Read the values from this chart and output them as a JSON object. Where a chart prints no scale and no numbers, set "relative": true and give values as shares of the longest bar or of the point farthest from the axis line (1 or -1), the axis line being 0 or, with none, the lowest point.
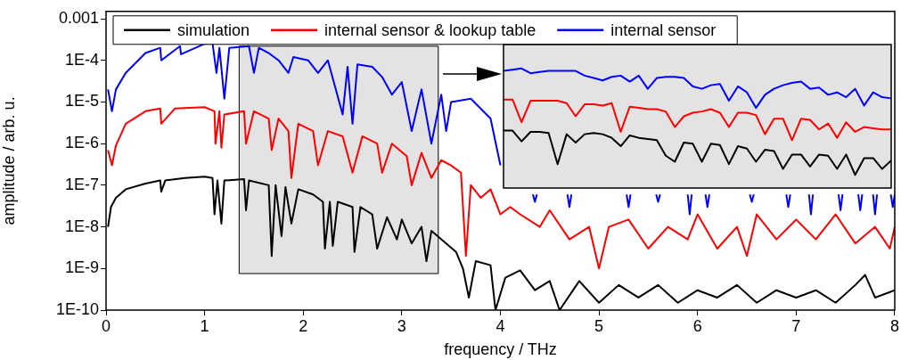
{
  "chart_data": [
    {
      "type": "line",
      "xlabel": "frequency / THz",
      "ylabel": "amplitude / arb. u.",
      "log": true,
      "legend": "top",
      "marker": "none",
      "line_style": "solid",
      "xlim": [
        0,
        8
      ],
      "xticks": [
        0,
        1,
        2,
        3,
        4,
        5,
        6,
        7,
        8
      ],
      "ylim": [
        1e-10,
        0.0015
      ],
      "yticks": [
        0.001,
        {
          "value": 0.0001,
          "label": "1E-4"
        },
        {
          "value": 1e-05,
          "label": "1E-5"
        },
        {
          "value": 1e-06,
          "label": "1E-6"
        },
        {
          "value": 1e-07,
          "label": "1E-7"
        },
        {
          "value": 1e-08,
          "label": "1E-8"
        },
        {
          "value": 1e-09,
          "label": "1E-9"
        },
        {
          "value": 1e-10,
          "label": "1E-10"
        }
      ],
      "bands": [
        {
          "axis": "x",
          "from": 1.35,
          "to": 3.37,
          "color": "#e3e3e3"
        }
      ],
      "series": [
        {
          "name": "simulation",
          "color": "#000000",
          "x": [
            0.02,
            0.05,
            0.1,
            0.2,
            0.4,
            0.55,
            0.56,
            0.6,
            0.8,
            1.0,
            1.08,
            1.1,
            1.13,
            1.17,
            1.2,
            1.4,
            1.42,
            1.45,
            1.65,
            1.68,
            1.72,
            1.78,
            1.82,
            1.88,
            1.95,
            2.1,
            2.2,
            2.22,
            2.27,
            2.3,
            2.35,
            2.5,
            2.52,
            2.58,
            2.7,
            2.75,
            2.85,
            2.95,
            3.0,
            3.1,
            3.2,
            3.25,
            3.3,
            3.45,
            3.55,
            3.62,
            3.68,
            3.75,
            3.9,
            3.95,
            4.05,
            4.2,
            4.35,
            4.5,
            4.6,
            4.8,
            5.0,
            5.2,
            5.4,
            5.6,
            5.8,
            6.0,
            6.2,
            6.4,
            6.6,
            6.8,
            7.0,
            7.2,
            7.4,
            7.6,
            7.7,
            7.8,
            8.0
          ],
          "values": [
            1e-08,
            3e-08,
            5e-08,
            8e-08,
            1.1e-07,
            1.3e-07,
            7e-08,
            1.3e-07,
            1.5e-07,
            1.6e-07,
            1.5e-07,
            2e-08,
            1.3e-07,
            1.2e-08,
            1.3e-07,
            1.4e-07,
            2.5e-08,
            1.3e-07,
            1e-07,
            2e-09,
            1e-07,
            6e-09,
            9e-08,
            1.2e-08,
            8e-08,
            6e-08,
            4e-08,
            3e-09,
            4e-08,
            3.5e-09,
            4e-08,
            3e-08,
            2.5e-09,
            3e-08,
            2e-08,
            3e-09,
            1.7e-08,
            5e-09,
            1.5e-08,
            4e-09,
            1e-08,
            1.5e-09,
            8e-09,
            4e-09,
            2.5e-09,
            1e-09,
            2e-10,
            1.5e-09,
            1.2e-09,
            1e-10,
            6e-10,
            9e-10,
            3e-10,
            5e-10,
            1e-10,
            5e-10,
            1.5e-10,
            4e-10,
            2e-10,
            4e-10,
            1.5e-10,
            3e-10,
            2e-10,
            4e-10,
            1.5e-10,
            3e-10,
            2e-10,
            3e-10,
            1.5e-10,
            4e-10,
            7e-10,
            2e-10,
            3e-10
          ]
        },
        {
          "name": "internal sensor & lookup table",
          "color": "#ff0000",
          "x": [
            0.02,
            0.06,
            0.1,
            0.2,
            0.4,
            0.55,
            0.56,
            0.7,
            1.0,
            1.1,
            1.11,
            1.15,
            1.17,
            1.2,
            1.4,
            1.42,
            1.5,
            1.65,
            1.68,
            1.75,
            1.85,
            1.88,
            1.95,
            2.1,
            2.15,
            2.25,
            2.4,
            2.5,
            2.6,
            2.75,
            2.8,
            2.9,
            3.05,
            3.1,
            3.2,
            3.3,
            3.4,
            3.5,
            3.6,
            3.65,
            3.7,
            3.8,
            3.9,
            4.0,
            4.1,
            4.2,
            4.4,
            4.5,
            4.7,
            4.9,
            5.0,
            5.1,
            5.3,
            5.5,
            5.7,
            5.9,
            6.0,
            6.2,
            6.4,
            6.5,
            6.6,
            6.8,
            7.0,
            7.2,
            7.4,
            7.6,
            7.8,
            7.95,
            8.0
          ],
          "values": [
            7e-07,
            3e-07,
            9e-07,
            3e-06,
            6e-06,
            7e-06,
            3e-06,
            7e-06,
            7.5e-06,
            6e-06,
            1e-06,
            6e-06,
            8e-07,
            5e-06,
            6e-06,
            1e-06,
            6e-06,
            4e-06,
            7e-07,
            4e-06,
            2e-06,
            1.5e-07,
            3e-06,
            2e-06,
            3e-07,
            2e-06,
            1.5e-06,
            2e-07,
            1.5e-06,
            1e-06,
            2e-07,
            1e-06,
            5e-07,
            1e-07,
            6e-07,
            1.5e-07,
            4e-07,
            3e-07,
            2e-07,
            2e-09,
            1e-07,
            5e-08,
            8e-08,
            2e-08,
            3e-08,
            2e-08,
            1e-08,
            2.5e-08,
            5e-09,
            1e-08,
            1e-09,
            1e-08,
            1.5e-08,
            3e-09,
            1e-08,
            5e-09,
            2e-08,
            3e-09,
            1e-08,
            2e-09,
            2e-08,
            5e-09,
            1.5e-08,
            5e-09,
            2e-08,
            4e-09,
            1e-08,
            3e-09,
            1e-08
          ]
        },
        {
          "name": "internal sensor",
          "color": "#0000ff",
          "x": [
            0.02,
            0.06,
            0.1,
            0.2,
            0.4,
            0.55,
            0.56,
            0.75,
            0.76,
            1.0,
            1.08,
            1.12,
            1.15,
            1.2,
            1.25,
            1.45,
            1.5,
            1.55,
            1.65,
            1.75,
            1.85,
            1.9,
            2.05,
            2.15,
            2.25,
            2.4,
            2.45,
            2.5,
            2.55,
            2.7,
            2.8,
            2.9,
            3.0,
            3.1,
            3.2,
            3.3,
            3.4,
            3.45,
            3.5,
            3.7,
            3.9,
            4.0,
            4.03,
            4.33,
            4.35,
            4.37,
            4.4,
            4.68,
            4.7,
            4.72,
            4.75,
            5.28,
            5.3,
            5.32,
            5.35,
            5.58,
            5.6,
            5.62,
            5.65,
            5.9,
            5.92,
            5.94,
            5.97,
            6.08,
            6.1,
            6.12,
            6.15,
            6.53,
            6.55,
            6.57,
            6.6,
            6.9,
            6.92,
            6.94,
            6.97,
            7.13,
            7.15,
            7.17,
            7.2,
            7.43,
            7.45,
            7.47,
            7.5,
            7.63,
            7.65,
            7.67,
            7.7,
            7.78,
            7.8,
            7.82,
            7.85,
            7.96,
            7.98,
            8.0
          ],
          "values": [
            2e-05,
            6e-06,
            2e-05,
            5e-05,
            0.00015,
            0.0002,
            0.0001,
            0.00022,
            0.00014,
            0.00025,
            0.00026,
            5e-05,
            0.0002,
            1.2e-05,
            0.0002,
            0.00022,
            5e-05,
            0.0002,
            0.00015,
            0.0001,
            5e-05,
            0.00012,
            0.0001,
            5e-05,
            0.0001,
            5e-06,
            7e-05,
            3e-06,
            8e-05,
            7e-05,
            4e-05,
            1.5e-05,
            3e-05,
            2e-06,
            2e-05,
            1e-06,
            1.5e-05,
            2e-06,
            1e-05,
            1.2e-05,
            4e-06,
            3e-07,
            null,
            6e-08,
            4e-08,
            6e-08,
            null,
            6e-08,
            3e-08,
            6e-08,
            null,
            6e-08,
            3e-08,
            6e-08,
            null,
            6e-08,
            4e-08,
            6e-08,
            null,
            6e-08,
            2e-08,
            6e-08,
            null,
            6e-08,
            3e-08,
            6e-08,
            null,
            6e-08,
            4e-08,
            6e-08,
            null,
            6e-08,
            3e-08,
            6e-08,
            null,
            6e-08,
            2e-08,
            6e-08,
            null,
            6e-08,
            2.5e-08,
            6e-08,
            null,
            6e-08,
            2.5e-08,
            6e-08,
            null,
            6e-08,
            2e-08,
            6e-08,
            null,
            6e-08,
            3e-08,
            6e-08
          ]
        }
      ]
    },
    {
      "type": "line",
      "relative": true,
      "marker": "none",
      "line_style": "solid",
      "categories": [
        null,
        null,
        null,
        null,
        null,
        null,
        null,
        null,
        null,
        null,
        null,
        null,
        null,
        null,
        null,
        null,
        null,
        null,
        null,
        null,
        null,
        null,
        null,
        null,
        null,
        null,
        null,
        null,
        null,
        null,
        null,
        null,
        null,
        null,
        null,
        null,
        null,
        null,
        null,
        null,
        null,
        null,
        null,
        null
      ],
      "series": [
        {
          "color": "#0000ff",
          "values": [
            0.98,
            0.99,
            1,
            0.96,
            0.97,
            0.98,
            0.98,
            0.98,
            0.98,
            0.94,
            0.92,
            0.9,
            0.93,
            0.94,
            0.89,
            0.94,
            0.83,
            0.92,
            0.93,
            0.93,
            0.92,
            0.85,
            0.83,
            0.86,
            0.87,
            0.73,
            0.85,
            0.8,
            0.67,
            0.78,
            0.83,
            0.86,
            0.88,
            0.89,
            0.83,
            0.84,
            0.78,
            0.8,
            0.76,
            0.83,
            0.69,
            0.8,
            0.76,
            0.75
          ]
        },
        {
          "color": "#ff0000",
          "values": [
            0.74,
            0.74,
            0.55,
            0.73,
            0.73,
            0.73,
            0.73,
            0.71,
            0.6,
            0.7,
            0.7,
            0.69,
            0.71,
            0.47,
            0.68,
            0.67,
            0.66,
            0.66,
            0.64,
            0.51,
            0.6,
            0.63,
            0.64,
            0.66,
            0.63,
            0.51,
            0.63,
            0.63,
            0.61,
            0.45,
            0.58,
            0.58,
            0.4,
            0.58,
            0.57,
            0.49,
            0.54,
            0.42,
            0.55,
            0.47,
            0.51,
            0.5,
            0.49,
            0.49
          ]
        },
        {
          "color": "#000000",
          "values": [
            0.48,
            0.48,
            0.39,
            0.47,
            0.47,
            0.46,
            0.2,
            0.45,
            0.38,
            0.45,
            0.46,
            0.45,
            0.42,
            0.35,
            0.44,
            0.42,
            0.41,
            0.4,
            0.27,
            0.22,
            0.38,
            0.37,
            0.22,
            0.37,
            0.36,
            0.2,
            0.35,
            0.33,
            0.22,
            0.32,
            0.31,
            0.16,
            0.28,
            0.28,
            0.18,
            0.28,
            0.27,
            0.16,
            0.28,
            0.11,
            0.25,
            0.25,
            0.16,
            0.23
          ]
        }
      ]
    }
  ]
}
